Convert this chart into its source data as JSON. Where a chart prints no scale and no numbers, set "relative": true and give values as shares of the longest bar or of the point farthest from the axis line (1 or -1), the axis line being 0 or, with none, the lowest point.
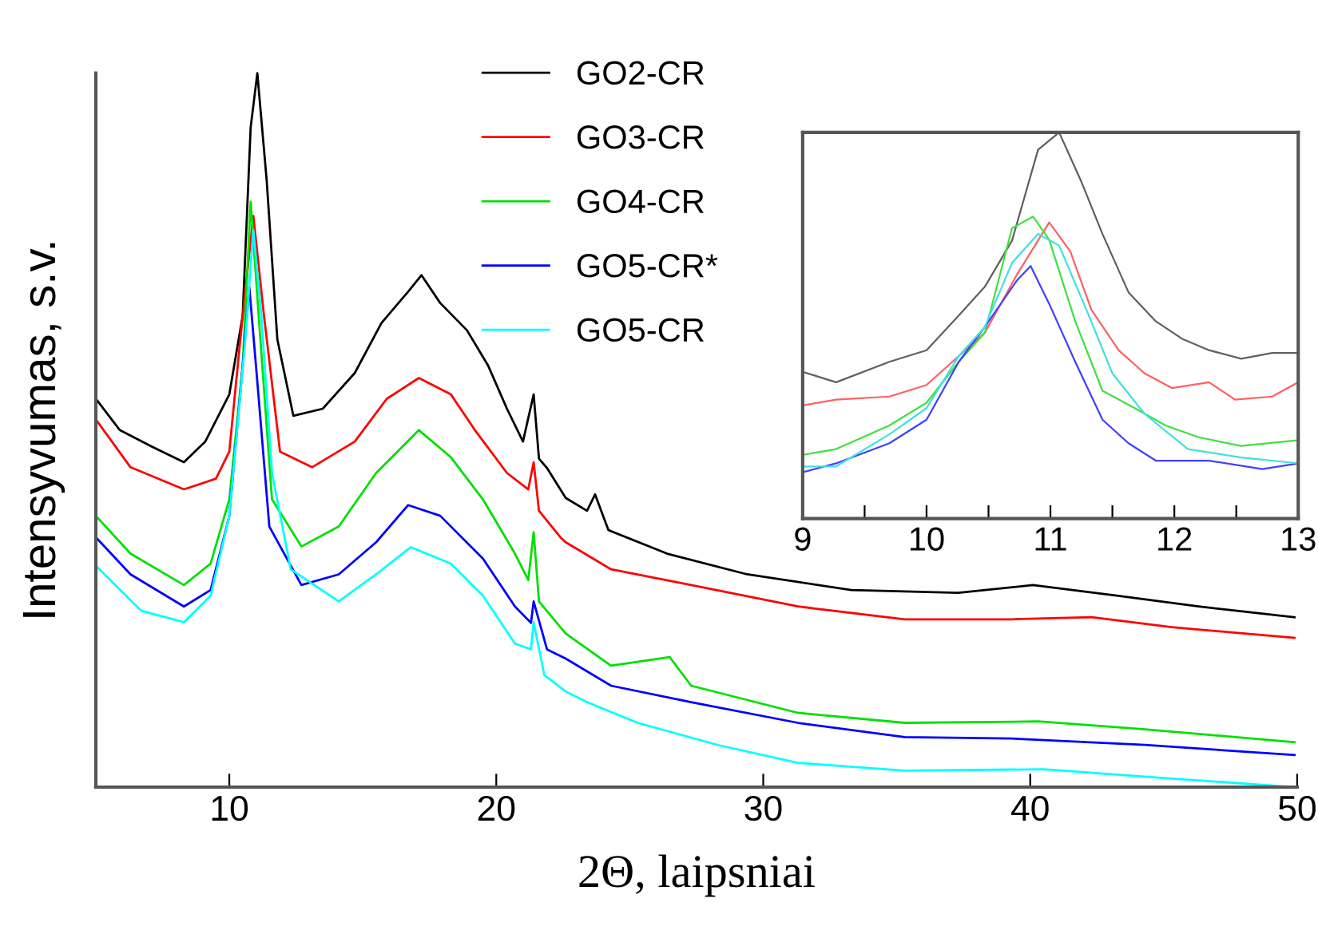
{
  "chart_data": [
    {
      "type": "line",
      "xlabel": "2Θ, laipsniai",
      "ylabel": "Intensyvumas, s.v.",
      "relative": true,
      "xlim": [
        5,
        50
      ],
      "xticks": [
        {
          "value": 5,
          "label": null
        },
        10,
        20,
        30,
        40,
        50
      ],
      "legend": "top",
      "grid": false,
      "marker": "none",
      "line_style": "solid",
      "series": [
        {
          "name": "GO2-CR",
          "color": "#000000",
          "x": [
            5,
            5.9,
            7.1,
            8.3,
            9.1,
            10.0,
            10.5,
            10.8,
            11.05,
            11.4,
            11.8,
            12.4,
            13.5,
            14.7,
            15.7,
            16.7,
            17.2,
            17.9,
            18.9,
            19.7,
            20.4,
            21.0,
            21.4,
            21.6,
            21.9,
            22.6,
            23.4,
            23.7,
            24.2,
            26.4,
            29.4,
            33.3,
            37.3,
            40.1,
            43.3,
            46.3,
            49.9
          ],
          "values": [
            0.544,
            0.5,
            0.477,
            0.455,
            0.484,
            0.55,
            0.66,
            0.924,
            1.0,
            0.85,
            0.627,
            0.52,
            0.53,
            0.58,
            0.65,
            0.694,
            0.717,
            0.678,
            0.64,
            0.59,
            0.53,
            0.484,
            0.55,
            0.46,
            0.447,
            0.405,
            0.387,
            0.41,
            0.36,
            0.327,
            0.298,
            0.276,
            0.272,
            0.283,
            0.268,
            0.253,
            0.238
          ]
        },
        {
          "name": "GO3-CR",
          "color": "#ff0000",
          "x": [
            5,
            6.3,
            8.3,
            9.5,
            10.0,
            10.5,
            10.9,
            11.3,
            11.9,
            13.1,
            14.7,
            15.9,
            17.1,
            18.3,
            19.2,
            20.4,
            21.2,
            21.4,
            21.6,
            22.4,
            22.6,
            24.3,
            27.3,
            31.3,
            35.3,
            39.3,
            42.3,
            45.3,
            49.9
          ],
          "values": [
            0.515,
            0.448,
            0.417,
            0.432,
            0.47,
            0.66,
            0.8,
            0.66,
            0.47,
            0.448,
            0.484,
            0.544,
            0.573,
            0.55,
            0.5,
            0.44,
            0.417,
            0.455,
            0.387,
            0.35,
            0.343,
            0.305,
            0.283,
            0.253,
            0.235,
            0.235,
            0.238,
            0.224,
            0.209
          ]
        },
        {
          "name": "GO4-CR",
          "color": "#00e000",
          "x": [
            5,
            6.3,
            8.3,
            9.3,
            10.0,
            10.5,
            10.8,
            11.1,
            11.6,
            12.7,
            14.1,
            15.5,
            17.1,
            18.3,
            19.5,
            20.7,
            21.2,
            21.4,
            21.6,
            22.6,
            24.3,
            26.5,
            27.3,
            31.3,
            35.3,
            40.3,
            44.3,
            49.9
          ],
          "values": [
            0.38,
            0.327,
            0.283,
            0.313,
            0.403,
            0.59,
            0.82,
            0.66,
            0.403,
            0.337,
            0.365,
            0.44,
            0.5,
            0.462,
            0.403,
            0.327,
            0.29,
            0.357,
            0.26,
            0.215,
            0.17,
            0.182,
            0.142,
            0.104,
            0.09,
            0.092,
            0.081,
            0.063
          ]
        },
        {
          "name": "GO5-CR*",
          "color": "#0000ff",
          "x": [
            5,
            6.3,
            8.3,
            9.3,
            10.0,
            10.5,
            10.75,
            11.0,
            11.5,
            12.7,
            14.1,
            15.5,
            16.7,
            17.9,
            19.5,
            20.7,
            21.3,
            21.4,
            21.9,
            22.6,
            24.3,
            27.3,
            31.3,
            35.3,
            39.3,
            44.3,
            49.9
          ],
          "values": [
            0.35,
            0.298,
            0.253,
            0.276,
            0.38,
            0.59,
            0.7,
            0.59,
            0.365,
            0.283,
            0.298,
            0.343,
            0.395,
            0.38,
            0.32,
            0.253,
            0.23,
            0.26,
            0.193,
            0.18,
            0.142,
            0.119,
            0.09,
            0.07,
            0.068,
            0.059,
            0.045
          ]
        },
        {
          "name": "GO5-CR",
          "color": "#00ffff",
          "x": [
            5,
            6.7,
            8.3,
            9.3,
            10.0,
            10.6,
            10.9,
            11.2,
            11.6,
            12.3,
            14.1,
            15.5,
            16.8,
            18.3,
            19.5,
            20.7,
            21.3,
            21.4,
            21.8,
            22.6,
            23.4,
            25.3,
            28.3,
            31.3,
            35.3,
            40.5,
            45.3,
            49.9
          ],
          "values": [
            0.31,
            0.247,
            0.231,
            0.268,
            0.38,
            0.627,
            0.78,
            0.66,
            0.44,
            0.305,
            0.26,
            0.298,
            0.336,
            0.313,
            0.268,
            0.201,
            0.193,
            0.231,
            0.157,
            0.134,
            0.119,
            0.09,
            0.059,
            0.034,
            0.023,
            0.025,
            0.012,
            0.0
          ]
        }
      ]
    },
    {
      "type": "line",
      "relative": true,
      "xlim": [
        9,
        13
      ],
      "xticks": [
        9,
        {
          "value": 9.5,
          "label": null
        },
        10,
        {
          "value": 10.5,
          "label": null
        },
        11,
        {
          "value": 11.5,
          "label": null
        },
        12,
        {
          "value": 12.5,
          "label": null
        },
        13
      ],
      "grid": false,
      "marker": "none",
      "line_style": "solid",
      "series": [
        {
          "color": "#606060",
          "x": [
            9,
            9.27,
            9.7,
            10.0,
            10.26,
            10.47,
            10.69,
            10.9,
            11.07,
            11.25,
            11.42,
            11.63,
            11.85,
            12.06,
            12.28,
            12.54,
            12.79,
            13
          ],
          "values": [
            0.38,
            0.353,
            0.406,
            0.436,
            0.526,
            0.6,
            0.72,
            0.955,
            1.0,
            0.872,
            0.737,
            0.586,
            0.511,
            0.466,
            0.436,
            0.414,
            0.429,
            0.429
          ]
        },
        {
          "color": "#ff6060",
          "x": [
            9,
            9.27,
            9.7,
            10.0,
            10.26,
            10.47,
            10.73,
            10.99,
            11.16,
            11.33,
            11.55,
            11.76,
            11.98,
            12.28,
            12.49,
            12.79,
            13
          ],
          "values": [
            0.293,
            0.308,
            0.316,
            0.346,
            0.421,
            0.481,
            0.632,
            0.767,
            0.692,
            0.541,
            0.436,
            0.376,
            0.338,
            0.353,
            0.308,
            0.316,
            0.353
          ]
        },
        {
          "color": "#40e040",
          "x": [
            9,
            9.27,
            9.7,
            10.0,
            10.26,
            10.47,
            10.69,
            10.86,
            10.99,
            11.2,
            11.42,
            11.68,
            11.93,
            12.19,
            12.54,
            13
          ],
          "values": [
            0.165,
            0.18,
            0.241,
            0.3,
            0.406,
            0.481,
            0.752,
            0.782,
            0.722,
            0.511,
            0.331,
            0.286,
            0.241,
            0.211,
            0.188,
            0.203
          ]
        },
        {
          "color": "#4040ff",
          "x": [
            9,
            9.27,
            9.7,
            10.0,
            10.26,
            10.47,
            10.73,
            10.84,
            10.99,
            11.2,
            11.42,
            11.63,
            11.85,
            12.28,
            12.71,
            13
          ],
          "values": [
            0.12,
            0.143,
            0.195,
            0.256,
            0.406,
            0.496,
            0.617,
            0.654,
            0.556,
            0.406,
            0.256,
            0.195,
            0.15,
            0.15,
            0.128,
            0.143
          ]
        },
        {
          "color": "#40e0e0",
          "x": [
            9,
            9.27,
            9.7,
            10.0,
            10.26,
            10.47,
            10.69,
            10.9,
            11.07,
            11.29,
            11.5,
            11.76,
            12.11,
            12.54,
            13
          ],
          "values": [
            0.135,
            0.135,
            0.218,
            0.286,
            0.421,
            0.496,
            0.662,
            0.737,
            0.707,
            0.541,
            0.376,
            0.271,
            0.18,
            0.158,
            0.143
          ]
        }
      ]
    }
  ]
}
